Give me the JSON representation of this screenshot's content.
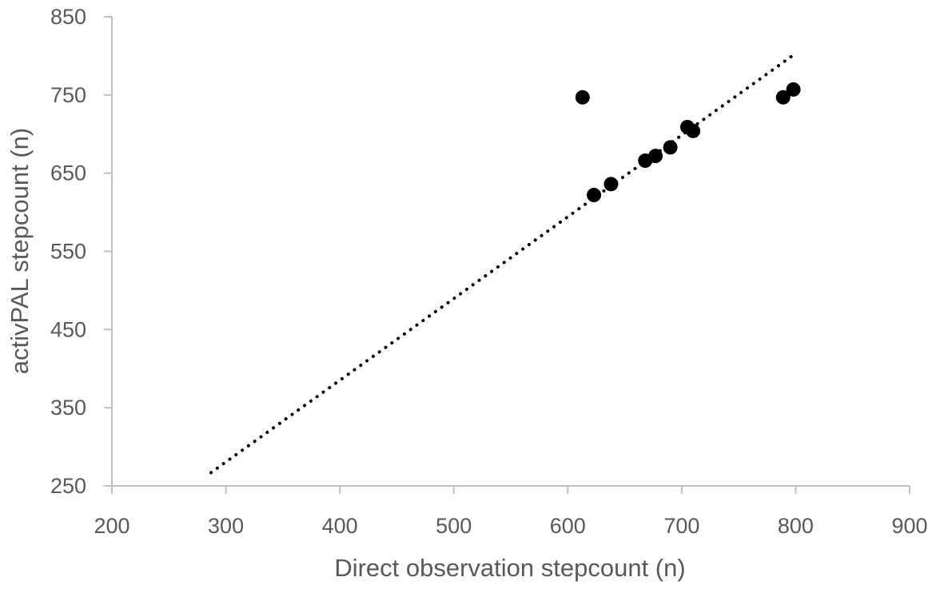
{
  "chart_data": {
    "type": "scatter",
    "title": "",
    "xlabel": "Direct observation stepcount (n)",
    "ylabel": "activPAL stepcount (n)",
    "xlim": [
      200,
      900
    ],
    "ylim": [
      250,
      850
    ],
    "xticks": [
      200,
      300,
      400,
      500,
      600,
      700,
      800,
      900
    ],
    "yticks": [
      250,
      350,
      450,
      550,
      650,
      750,
      850
    ],
    "grid": false,
    "legend": "none",
    "series": [
      {
        "marker_color": "#000000",
        "points": [
          {
            "x": 613,
            "y": 747
          },
          {
            "x": 623,
            "y": 622
          },
          {
            "x": 638,
            "y": 636
          },
          {
            "x": 668,
            "y": 666
          },
          {
            "x": 677,
            "y": 672
          },
          {
            "x": 690,
            "y": 683
          },
          {
            "x": 705,
            "y": 709
          },
          {
            "x": 710,
            "y": 704
          },
          {
            "x": 789,
            "y": 747
          },
          {
            "x": 798,
            "y": 757
          }
        ]
      }
    ],
    "trendline": {
      "style": "dotted",
      "color": "#000000",
      "from": {
        "x": 287,
        "y": 267
      },
      "to": {
        "x": 796,
        "y": 799
      }
    },
    "axis_color": "#bfbfbf",
    "text_color": "#595959"
  }
}
